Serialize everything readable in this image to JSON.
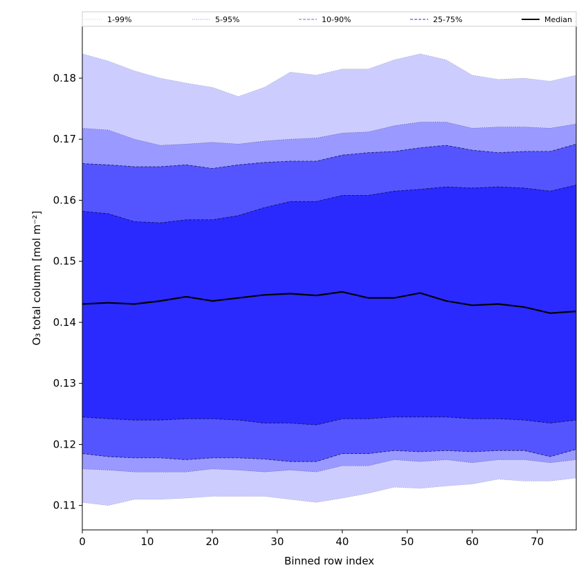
{
  "chart_data": {
    "type": "area",
    "xlabel": "Binned row index",
    "ylabel": "O₃ total column [mol m⁻²]",
    "xlim": [
      0,
      76
    ],
    "ylim": [
      0.106,
      0.1885
    ],
    "xticks": [
      0,
      10,
      20,
      30,
      40,
      50,
      60,
      70
    ],
    "yticks": [
      0.11,
      0.12,
      0.13,
      0.14,
      0.15,
      0.16,
      0.17,
      0.18
    ],
    "ytick_labels": [
      "0.11",
      "0.12",
      "0.13",
      "0.14",
      "0.15",
      "0.16",
      "0.17",
      "0.18"
    ],
    "x": [
      0,
      4,
      8,
      12,
      16,
      20,
      24,
      28,
      32,
      36,
      40,
      44,
      48,
      52,
      56,
      60,
      64,
      68,
      72,
      76
    ],
    "bands": [
      {
        "name": "1-99%",
        "color": "#ccccff",
        "lower": [
          0.1105,
          0.11,
          0.111,
          0.111,
          0.1112,
          0.1115,
          0.1115,
          0.1115,
          0.111,
          0.1105,
          0.1112,
          0.112,
          0.113,
          0.1128,
          0.1132,
          0.1135,
          0.1143,
          0.114,
          0.114,
          0.1145
        ],
        "upper": [
          0.184,
          0.1828,
          0.1812,
          0.18,
          0.1792,
          0.1785,
          0.177,
          0.1785,
          0.181,
          0.1805,
          0.1815,
          0.1815,
          0.183,
          0.184,
          0.183,
          0.1805,
          0.1798,
          0.18,
          0.1795,
          0.1805
        ]
      },
      {
        "name": "5-95%",
        "color": "#9999ff",
        "lower": [
          0.116,
          0.1158,
          0.1155,
          0.1155,
          0.1155,
          0.116,
          0.1158,
          0.1155,
          0.1158,
          0.1155,
          0.1165,
          0.1165,
          0.1175,
          0.1172,
          0.1175,
          0.117,
          0.1175,
          0.1175,
          0.117,
          0.1175
        ],
        "upper": [
          0.1718,
          0.1715,
          0.17,
          0.169,
          0.1692,
          0.1695,
          0.1692,
          0.1697,
          0.17,
          0.1702,
          0.171,
          0.1712,
          0.1722,
          0.1728,
          0.1728,
          0.1718,
          0.172,
          0.172,
          0.1718,
          0.1725
        ]
      },
      {
        "name": "10-90%",
        "color": "#5555ff",
        "lower": [
          0.1185,
          0.118,
          0.1178,
          0.1178,
          0.1175,
          0.1178,
          0.1178,
          0.1176,
          0.1172,
          0.1172,
          0.1185,
          0.1185,
          0.119,
          0.1188,
          0.119,
          0.1188,
          0.119,
          0.119,
          0.118,
          0.1192
        ],
        "upper": [
          0.166,
          0.1658,
          0.1655,
          0.1655,
          0.1658,
          0.1652,
          0.1658,
          0.1662,
          0.1664,
          0.1664,
          0.1674,
          0.1678,
          0.168,
          0.1686,
          0.169,
          0.1682,
          0.1678,
          0.168,
          0.168,
          0.1692
        ]
      },
      {
        "name": "25-75%",
        "color": "#2a2aff",
        "lower": [
          0.1245,
          0.1242,
          0.124,
          0.124,
          0.1242,
          0.1242,
          0.124,
          0.1235,
          0.1235,
          0.1232,
          0.1242,
          0.1242,
          0.1245,
          0.1245,
          0.1245,
          0.1242,
          0.1242,
          0.124,
          0.1235,
          0.124
        ],
        "upper": [
          0.1582,
          0.1578,
          0.1565,
          0.1563,
          0.1568,
          0.1568,
          0.1575,
          0.1588,
          0.1598,
          0.1598,
          0.1608,
          0.1608,
          0.1615,
          0.1618,
          0.1622,
          0.162,
          0.1622,
          0.162,
          0.1615,
          0.1625
        ]
      }
    ],
    "median": [
      0.143,
      0.1432,
      0.143,
      0.1435,
      0.1442,
      0.1435,
      0.144,
      0.1445,
      0.1447,
      0.1444,
      0.145,
      0.144,
      0.144,
      0.1448,
      0.1435,
      0.1428,
      0.143,
      0.1425,
      0.1415,
      0.1418
    ],
    "median_color": "#000000",
    "legend": {
      "placement": "top",
      "entries": [
        {
          "label": "1-99%",
          "color": "#ccccff",
          "style": "dotted"
        },
        {
          "label": "5-95%",
          "color": "#9999ff",
          "style": "dotted"
        },
        {
          "label": "10-90%",
          "color": "#8080ff",
          "style": "dashed"
        },
        {
          "label": "25-75%",
          "color": "#5555ff",
          "style": "dashed"
        },
        {
          "label": "Median",
          "color": "#000000",
          "style": "solid"
        }
      ]
    },
    "grid": false
  }
}
